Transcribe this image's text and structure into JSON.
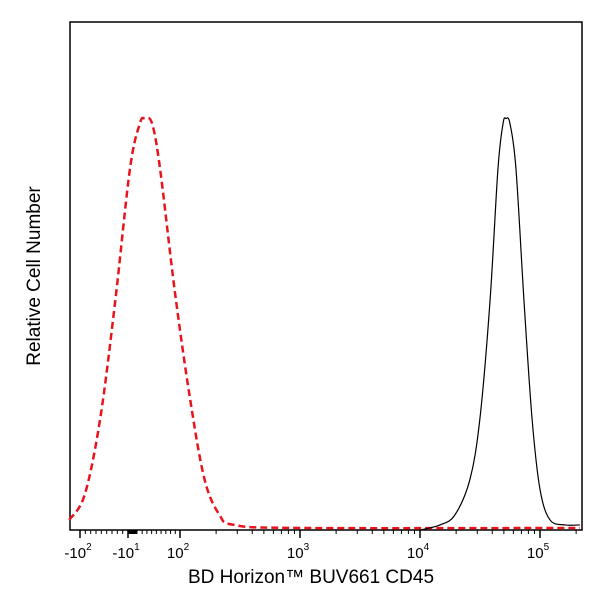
{
  "chart_data": {
    "type": "line",
    "title": "",
    "xlabel": "BD Horizon™ BUV661 CD45",
    "ylabel": "Relative Cell Number",
    "x_scale": "biexponential",
    "xlim": [
      -120,
      215000
    ],
    "ylim": [
      0,
      100
    ],
    "grid": false,
    "x_ticks": [
      {
        "value": -100,
        "base": "-10",
        "exp": "2"
      },
      {
        "value": -10,
        "base": "-10",
        "exp": "1"
      },
      {
        "value": 100,
        "base": "10",
        "exp": "2"
      },
      {
        "value": 1000,
        "base": "10",
        "exp": "3"
      },
      {
        "value": 10000,
        "base": "10",
        "exp": "4"
      },
      {
        "value": 100000,
        "base": "10",
        "exp": "5"
      }
    ],
    "series": [
      {
        "style": "dashed",
        "color": "#e8141b",
        "x": [
          -120,
          -91,
          -62,
          -34,
          -6,
          15,
          26,
          41,
          58,
          89,
          121,
          160,
          213,
          282,
          963,
          215000
        ],
        "y": [
          2,
          7,
          22,
          45,
          71,
          80,
          81,
          80,
          71,
          47,
          26,
          10,
          3,
          1,
          0.4,
          0.4
        ]
      },
      {
        "style": "solid",
        "color": "#000000",
        "x": [
          10000,
          14680,
          19570,
          26100,
          31600,
          38300,
          44600,
          49200,
          52000,
          56200,
          63100,
          73600,
          85800,
          100000,
          121000,
          162000,
          215000
        ],
        "y": [
          0,
          1,
          3,
          10,
          22,
          45,
          71,
          80,
          81,
          80,
          71,
          45,
          22,
          8,
          2,
          1,
          1
        ]
      }
    ]
  }
}
